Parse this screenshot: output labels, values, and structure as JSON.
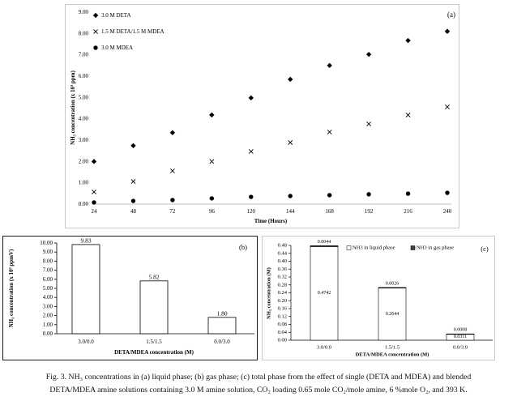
{
  "chart_data": [
    {
      "panel_label": "(a)",
      "type": "scatter",
      "x": [
        24,
        48,
        72,
        96,
        120,
        144,
        168,
        192,
        216,
        240
      ],
      "series": [
        {
          "name": "3.0 M DETA",
          "marker": "diamond",
          "values": [
            2.0,
            2.74,
            3.35,
            4.18,
            4.98,
            5.85,
            6.5,
            7.02,
            7.67,
            8.1
          ]
        },
        {
          "name": "1.5 M DETA/1.5 M MDEA",
          "marker": "cross",
          "values": [
            0.57,
            1.06,
            1.56,
            2.0,
            2.47,
            2.89,
            3.38,
            3.76,
            4.18,
            4.56
          ]
        },
        {
          "name": "3.0 M MDEA",
          "marker": "circle",
          "values": [
            0.08,
            0.15,
            0.19,
            0.27,
            0.34,
            0.38,
            0.42,
            0.46,
            0.49,
            0.53
          ]
        }
      ],
      "xlabel": "Time (Hours)",
      "ylabel": "NH₃ concentration (x 10³ ppm)",
      "xlim": [
        24,
        240
      ],
      "ylim": [
        0,
        9
      ],
      "xticks": [
        "24",
        "48",
        "72",
        "96",
        "120",
        "144",
        "168",
        "192",
        "216",
        "240"
      ],
      "yticks": [
        "0.00",
        "1.00",
        "2.00",
        "3.00",
        "4.00",
        "5.00",
        "6.00",
        "7.00",
        "8.00",
        "9.00"
      ],
      "legend": "top-left",
      "grid": false
    },
    {
      "panel_label": "(b)",
      "type": "bar",
      "categories": [
        "3.0/0.0",
        "1.5/1.5",
        "0.0/3.0"
      ],
      "values": [
        9.83,
        5.82,
        1.8
      ],
      "data_labels": [
        "9.83",
        "5.82",
        "1.80"
      ],
      "xlabel": "DETA/MDEA concentration (M)",
      "ylabel": "NH₃ concentration (x 10³ ppmV)",
      "ylim": [
        0,
        10
      ],
      "yticks": [
        "0.00",
        "1.00",
        "2.00",
        "3.00",
        "4.00",
        "5.00",
        "6.00",
        "7.00",
        "8.00",
        "9.00",
        "10.00"
      ],
      "bar_color": "#ffffff",
      "grid": false
    },
    {
      "panel_label": "(c)",
      "type": "bar",
      "stacked": true,
      "categories": [
        "3.0/0.0",
        "1.5/1.5",
        "0.0/3.0"
      ],
      "series": [
        {
          "name": "NH3 in liquid phase",
          "values": [
            0.4742,
            0.2644,
            0.0311
          ],
          "data_labels": [
            "0.4742",
            "0.2644",
            "0.0311"
          ],
          "color": "#ffffff"
        },
        {
          "name": "NH3 in gas phase",
          "values": [
            0.0044,
            0.0026,
            0.0008
          ],
          "data_labels": [
            "0.0044",
            "0.0026",
            "0.0008"
          ],
          "color": "#3f3f3f"
        }
      ],
      "xlabel": "DETA/MDEA concentration (M)",
      "ylabel": "NH₃ concentration (M)",
      "ylim": [
        0,
        0.48
      ],
      "yticks": [
        "0.00",
        "0.04",
        "0.08",
        "0.12",
        "0.16",
        "0.20",
        "0.24",
        "0.28",
        "0.32",
        "0.36",
        "0.40",
        "0.44",
        "0.48"
      ],
      "legend": "top",
      "grid": false
    }
  ],
  "caption": {
    "lines": [
      "Fig. 3. NH₃ concentrations in (a) liquid phase; (b) gas phase; (c) total phase from the effect of single (DETA and MDEA) and blended",
      "DETA/MDEA amine solutions containing 3.0 M amine solution, CO₂ loading 0.65 mole CO₂/mole amine, 6 %mole O₂, and 393 K."
    ]
  }
}
